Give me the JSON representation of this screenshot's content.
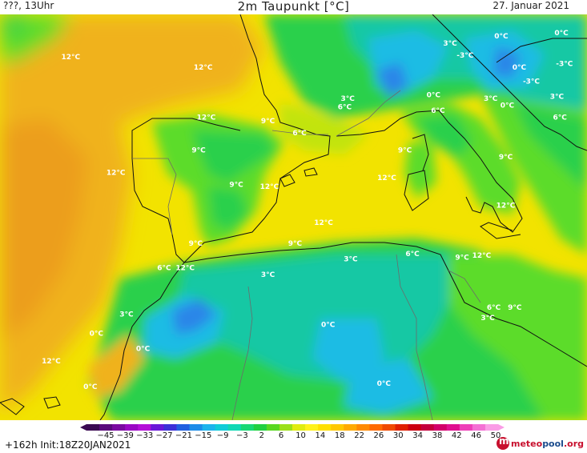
{
  "header": {
    "left": "???, 13Uhr",
    "title": "2m Taupunkt [°C]",
    "date": "27. Januar 2021"
  },
  "footer": {
    "run_info": "+162h  Init:18Z20JAN2021",
    "logo_brand": "meteo",
    "logo_brand2": "pool",
    "logo_tld": ".org"
  },
  "legend": {
    "ticks": [
      "−45",
      "−39",
      "−33",
      "−27",
      "−21",
      "−15",
      "−9",
      "−3",
      "2",
      "6",
      "10",
      "14",
      "18",
      "22",
      "26",
      "30",
      "34",
      "38",
      "42",
      "46",
      "50"
    ],
    "colors": [
      "#3a0a52",
      "#5a0b7c",
      "#7a0aa0",
      "#9a08c4",
      "#b410d8",
      "#6a18d8",
      "#3c30d8",
      "#2060e0",
      "#1c8ce8",
      "#1cb4ec",
      "#10ccd8",
      "#10d8b4",
      "#18d874",
      "#20d040",
      "#58d820",
      "#9ce018",
      "#e0ec10",
      "#fff21a",
      "#ffe000",
      "#ffc800",
      "#ffaa00",
      "#ff8a00",
      "#ff6a00",
      "#f04a00",
      "#e02000",
      "#cc0010",
      "#c4003c",
      "#d2006a",
      "#e01090",
      "#ee40b8",
      "#f470d4",
      "#fa9ce6"
    ]
  },
  "map": {
    "colors": {
      "sea_yellow": "#f2e300",
      "orange": "#f0b21e",
      "dark_orange": "#ec9e1c",
      "light_green": "#5cdc2c",
      "green": "#2cd04c",
      "teal": "#18c8a4",
      "cyan": "#1cbce4",
      "blue": "#2c86e8",
      "yellow_green": "#c2e410"
    },
    "labels": [
      {
        "text": "12°C",
        "lon": -12.8,
        "lat": 46.4
      },
      {
        "text": "12°C",
        "lon": -4.0,
        "lat": 45.8
      },
      {
        "text": "3°C",
        "lon": 12.4,
        "lat": 47.2
      },
      {
        "text": "-3°C",
        "lon": 13.4,
        "lat": 46.5
      },
      {
        "text": "0°C",
        "lon": 15.8,
        "lat": 47.6
      },
      {
        "text": "0°C",
        "lon": 17.0,
        "lat": 45.8
      },
      {
        "text": "-3°C",
        "lon": 20.0,
        "lat": 46.0
      },
      {
        "text": "-3°C",
        "lon": 17.8,
        "lat": 45.0
      },
      {
        "text": "0°C",
        "lon": 19.8,
        "lat": 47.8
      },
      {
        "text": "3°C",
        "lon": 5.6,
        "lat": 44.0
      },
      {
        "text": "6°C",
        "lon": 5.4,
        "lat": 43.5
      },
      {
        "text": "0°C",
        "lon": 11.3,
        "lat": 44.2
      },
      {
        "text": "6°C",
        "lon": 11.6,
        "lat": 43.3
      },
      {
        "text": "3°C",
        "lon": 15.1,
        "lat": 44.0
      },
      {
        "text": "0°C",
        "lon": 16.2,
        "lat": 43.6
      },
      {
        "text": "3°C",
        "lon": 19.5,
        "lat": 44.1
      },
      {
        "text": "6°C",
        "lon": 19.7,
        "lat": 42.9
      },
      {
        "text": "12°C",
        "lon": -3.8,
        "lat": 42.9
      },
      {
        "text": "9°C",
        "lon": 0.3,
        "lat": 42.7
      },
      {
        "text": "6°C",
        "lon": 2.4,
        "lat": 42.0
      },
      {
        "text": "9°C",
        "lon": -4.3,
        "lat": 41.0
      },
      {
        "text": "9°C",
        "lon": 9.4,
        "lat": 41.0
      },
      {
        "text": "9°C",
        "lon": 16.1,
        "lat": 40.6
      },
      {
        "text": "12°C",
        "lon": -9.8,
        "lat": 39.7
      },
      {
        "text": "9°C",
        "lon": -1.8,
        "lat": 39.0
      },
      {
        "text": "12°C",
        "lon": 0.4,
        "lat": 38.9
      },
      {
        "text": "12°C",
        "lon": 8.2,
        "lat": 39.4
      },
      {
        "text": "12°C",
        "lon": 16.1,
        "lat": 37.8
      },
      {
        "text": "12°C",
        "lon": 4.0,
        "lat": 36.8
      },
      {
        "text": "9°C",
        "lon": -4.5,
        "lat": 35.6
      },
      {
        "text": "9°C",
        "lon": 2.1,
        "lat": 35.6
      },
      {
        "text": "6°C",
        "lon": 9.9,
        "lat": 35.0
      },
      {
        "text": "9°C",
        "lon": 13.2,
        "lat": 34.8
      },
      {
        "text": "12°C",
        "lon": 14.5,
        "lat": 34.9
      },
      {
        "text": "3°C",
        "lon": 5.8,
        "lat": 34.7
      },
      {
        "text": "6°C",
        "lon": -6.6,
        "lat": 34.2
      },
      {
        "text": "12°C",
        "lon": -5.2,
        "lat": 34.2
      },
      {
        "text": "3°C",
        "lon": 0.3,
        "lat": 33.8
      },
      {
        "text": "3°C",
        "lon": -9.1,
        "lat": 31.5
      },
      {
        "text": "6°C",
        "lon": 15.3,
        "lat": 31.9
      },
      {
        "text": "9°C",
        "lon": 16.7,
        "lat": 31.9
      },
      {
        "text": "3°C",
        "lon": 14.9,
        "lat": 31.3
      },
      {
        "text": "0°C",
        "lon": -11.1,
        "lat": 30.4
      },
      {
        "text": "0°C",
        "lon": -8.0,
        "lat": 29.5
      },
      {
        "text": "0°C",
        "lon": 4.3,
        "lat": 30.9
      },
      {
        "text": "12°C",
        "lon": -14.1,
        "lat": 28.8
      },
      {
        "text": "0°C",
        "lon": -11.5,
        "lat": 27.3
      },
      {
        "text": "0°C",
        "lon": 8.0,
        "lat": 27.5
      }
    ]
  }
}
